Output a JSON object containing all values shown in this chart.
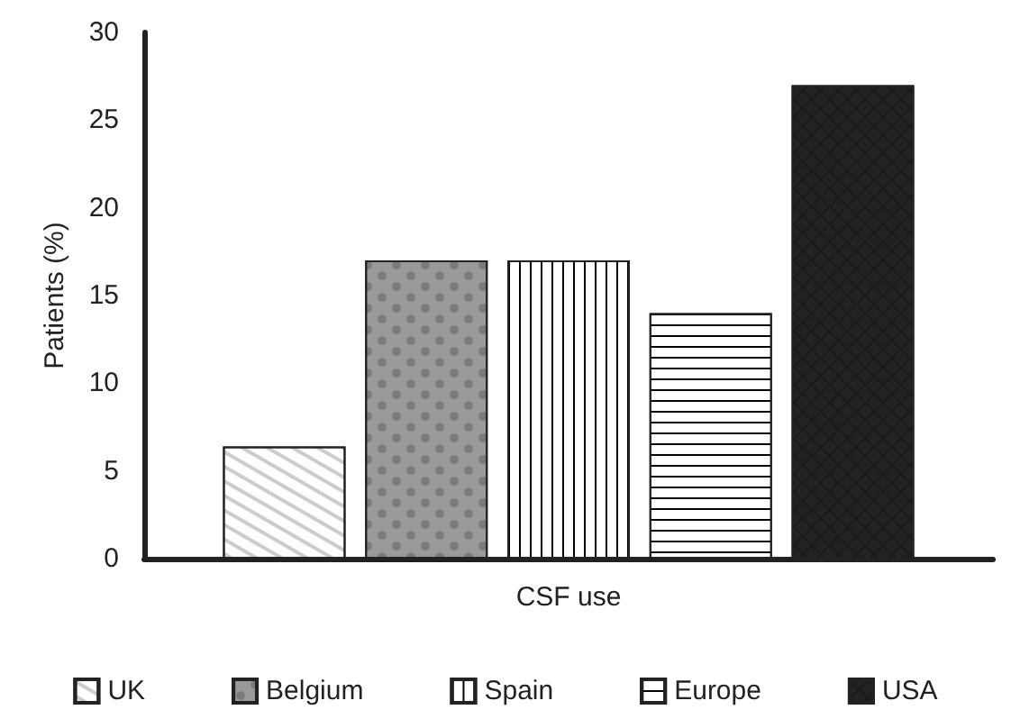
{
  "chart_data": {
    "type": "bar",
    "ylabel": "Patients (%)",
    "categories": [
      "CSF use"
    ],
    "series": [
      {
        "name": "UK",
        "color": "#ffffff",
        "values": [
          6.4
        ]
      },
      {
        "name": "Belgium",
        "color": "#999999",
        "values": [
          17
        ]
      },
      {
        "name": "Spain",
        "color": "#ffffff",
        "values": [
          17
        ]
      },
      {
        "name": "Europe",
        "color": "#ffffff",
        "values": [
          14
        ]
      },
      {
        "name": "USA",
        "color": "#222222",
        "values": [
          27
        ]
      }
    ],
    "ylim": [
      0,
      30
    ],
    "yticks": [
      0,
      5,
      10,
      15,
      20,
      25,
      30
    ],
    "grid": false,
    "legend": "bottom"
  }
}
